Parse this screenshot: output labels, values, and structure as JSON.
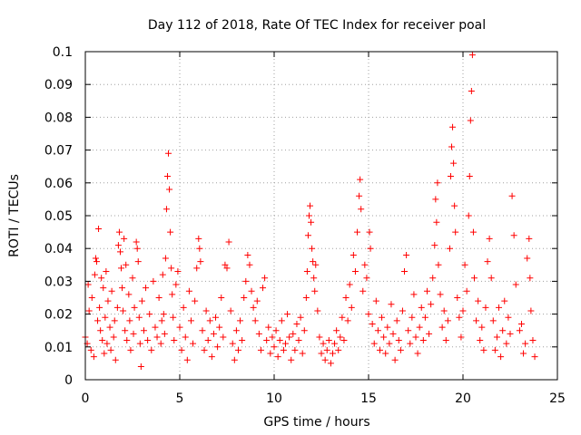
{
  "chart_data": {
    "type": "scatter",
    "title": "Day 112 of 2018, Rate Of TEC Index for receiver poal",
    "xlabel": "GPS time / hours",
    "ylabel": "ROTI / TECUs",
    "xlim": [
      0,
      25
    ],
    "ylim": [
      0,
      0.1
    ],
    "xticks": [
      0,
      5,
      10,
      15,
      20,
      25
    ],
    "xtick_labels": [
      "0",
      "5",
      "10",
      "15",
      "20",
      "25"
    ],
    "yticks": [
      0,
      0.01,
      0.02,
      0.03,
      0.04,
      0.05,
      0.06,
      0.07,
      0.08,
      0.09,
      0.1
    ],
    "ytick_labels": [
      "0",
      "0.01",
      "0.02",
      "0.03",
      "0.04",
      "0.05",
      "0.06",
      "0.07",
      "0.08",
      "0.09",
      "0.1"
    ],
    "grid": true,
    "marker": "+",
    "color": "#ff0000",
    "series": [
      {
        "name": "ROTI",
        "points": [
          [
            0.0,
            0.013
          ],
          [
            0.1,
            0.011
          ],
          [
            0.15,
            0.029
          ],
          [
            0.2,
            0.021
          ],
          [
            0.3,
            0.009
          ],
          [
            0.35,
            0.025
          ],
          [
            0.45,
            0.007
          ],
          [
            0.5,
            0.032
          ],
          [
            0.55,
            0.037
          ],
          [
            0.6,
            0.036
          ],
          [
            0.65,
            0.018
          ],
          [
            0.7,
            0.046
          ],
          [
            0.75,
            0.022
          ],
          [
            0.8,
            0.015
          ],
          [
            0.85,
            0.031
          ],
          [
            0.9,
            0.012
          ],
          [
            0.95,
            0.028
          ],
          [
            1.0,
            0.008
          ],
          [
            1.05,
            0.019
          ],
          [
            1.1,
            0.033
          ],
          [
            1.15,
            0.011
          ],
          [
            1.2,
            0.024
          ],
          [
            1.3,
            0.016
          ],
          [
            1.35,
            0.009
          ],
          [
            1.4,
            0.027
          ],
          [
            1.5,
            0.013
          ],
          [
            1.55,
            0.018
          ],
          [
            1.6,
            0.006
          ],
          [
            1.7,
            0.022
          ],
          [
            1.75,
            0.041
          ],
          [
            1.8,
            0.045
          ],
          [
            1.85,
            0.039
          ],
          [
            1.9,
            0.034
          ],
          [
            1.95,
            0.028
          ],
          [
            2.0,
            0.021
          ],
          [
            2.05,
            0.043
          ],
          [
            2.1,
            0.015
          ],
          [
            2.15,
            0.035
          ],
          [
            2.2,
            0.012
          ],
          [
            2.3,
            0.026
          ],
          [
            2.35,
            0.018
          ],
          [
            2.4,
            0.009
          ],
          [
            2.5,
            0.031
          ],
          [
            2.55,
            0.014
          ],
          [
            2.6,
            0.022
          ],
          [
            2.7,
            0.042
          ],
          [
            2.75,
            0.04
          ],
          [
            2.8,
            0.036
          ],
          [
            2.85,
            0.019
          ],
          [
            2.9,
            0.011
          ],
          [
            2.95,
            0.004
          ],
          [
            3.0,
            0.024
          ],
          [
            3.1,
            0.015
          ],
          [
            3.2,
            0.028
          ],
          [
            3.3,
            0.012
          ],
          [
            3.4,
            0.02
          ],
          [
            3.5,
            0.009
          ],
          [
            3.6,
            0.03
          ],
          [
            3.7,
            0.016
          ],
          [
            3.8,
            0.013
          ],
          [
            3.9,
            0.025
          ],
          [
            4.0,
            0.011
          ],
          [
            4.05,
            0.018
          ],
          [
            4.1,
            0.032
          ],
          [
            4.15,
            0.02
          ],
          [
            4.2,
            0.014
          ],
          [
            4.25,
            0.037
          ],
          [
            4.3,
            0.052
          ],
          [
            4.35,
            0.062
          ],
          [
            4.4,
            0.069
          ],
          [
            4.45,
            0.058
          ],
          [
            4.5,
            0.045
          ],
          [
            4.55,
            0.034
          ],
          [
            4.6,
            0.026
          ],
          [
            4.65,
            0.019
          ],
          [
            4.7,
            0.012
          ],
          [
            4.8,
            0.029
          ],
          [
            4.9,
            0.033
          ],
          [
            5.0,
            0.016
          ],
          [
            5.1,
            0.009
          ],
          [
            5.2,
            0.022
          ],
          [
            5.3,
            0.013
          ],
          [
            5.4,
            0.006
          ],
          [
            5.5,
            0.027
          ],
          [
            5.6,
            0.018
          ],
          [
            5.7,
            0.011
          ],
          [
            5.8,
            0.024
          ],
          [
            5.9,
            0.034
          ],
          [
            6.0,
            0.043
          ],
          [
            6.05,
            0.04
          ],
          [
            6.1,
            0.036
          ],
          [
            6.2,
            0.015
          ],
          [
            6.3,
            0.009
          ],
          [
            6.4,
            0.021
          ],
          [
            6.5,
            0.012
          ],
          [
            6.6,
            0.018
          ],
          [
            6.7,
            0.007
          ],
          [
            6.8,
            0.014
          ],
          [
            6.9,
            0.019
          ],
          [
            7.0,
            0.01
          ],
          [
            7.1,
            0.016
          ],
          [
            7.2,
            0.025
          ],
          [
            7.3,
            0.013
          ],
          [
            7.4,
            0.035
          ],
          [
            7.5,
            0.034
          ],
          [
            7.6,
            0.042
          ],
          [
            7.7,
            0.021
          ],
          [
            7.8,
            0.011
          ],
          [
            7.9,
            0.006
          ],
          [
            8.0,
            0.015
          ],
          [
            8.1,
            0.009
          ],
          [
            8.2,
            0.018
          ],
          [
            8.3,
            0.012
          ],
          [
            8.4,
            0.025
          ],
          [
            8.5,
            0.03
          ],
          [
            8.6,
            0.038
          ],
          [
            8.7,
            0.035
          ],
          [
            8.8,
            0.027
          ],
          [
            8.9,
            0.022
          ],
          [
            9.0,
            0.018
          ],
          [
            9.1,
            0.024
          ],
          [
            9.2,
            0.014
          ],
          [
            9.3,
            0.009
          ],
          [
            9.4,
            0.028
          ],
          [
            9.5,
            0.031
          ],
          [
            9.6,
            0.012
          ],
          [
            9.7,
            0.016
          ],
          [
            9.8,
            0.008
          ],
          [
            9.9,
            0.013
          ],
          [
            10.0,
            0.01
          ],
          [
            10.1,
            0.015
          ],
          [
            10.2,
            0.007
          ],
          [
            10.3,
            0.012
          ],
          [
            10.4,
            0.018
          ],
          [
            10.5,
            0.009
          ],
          [
            10.6,
            0.011
          ],
          [
            10.7,
            0.02
          ],
          [
            10.8,
            0.013
          ],
          [
            10.9,
            0.006
          ],
          [
            11.0,
            0.014
          ],
          [
            11.1,
            0.009
          ],
          [
            11.2,
            0.017
          ],
          [
            11.3,
            0.012
          ],
          [
            11.4,
            0.019
          ],
          [
            11.5,
            0.008
          ],
          [
            11.6,
            0.015
          ],
          [
            11.7,
            0.025
          ],
          [
            11.75,
            0.033
          ],
          [
            11.8,
            0.044
          ],
          [
            11.85,
            0.05
          ],
          [
            11.9,
            0.053
          ],
          [
            11.95,
            0.048
          ],
          [
            12.0,
            0.04
          ],
          [
            12.05,
            0.036
          ],
          [
            12.1,
            0.031
          ],
          [
            12.15,
            0.027
          ],
          [
            12.2,
            0.035
          ],
          [
            12.3,
            0.021
          ],
          [
            12.4,
            0.013
          ],
          [
            12.5,
            0.008
          ],
          [
            12.6,
            0.011
          ],
          [
            12.7,
            0.006
          ],
          [
            12.8,
            0.009
          ],
          [
            12.9,
            0.012
          ],
          [
            13.0,
            0.005
          ],
          [
            13.1,
            0.008
          ],
          [
            13.2,
            0.011
          ],
          [
            13.3,
            0.015
          ],
          [
            13.4,
            0.009
          ],
          [
            13.5,
            0.013
          ],
          [
            13.6,
            0.019
          ],
          [
            13.7,
            0.012
          ],
          [
            13.8,
            0.025
          ],
          [
            13.9,
            0.018
          ],
          [
            14.0,
            0.029
          ],
          [
            14.1,
            0.022
          ],
          [
            14.2,
            0.038
          ],
          [
            14.3,
            0.033
          ],
          [
            14.4,
            0.045
          ],
          [
            14.5,
            0.056
          ],
          [
            14.55,
            0.061
          ],
          [
            14.6,
            0.052
          ],
          [
            14.7,
            0.027
          ],
          [
            14.8,
            0.035
          ],
          [
            14.9,
            0.031
          ],
          [
            15.0,
            0.02
          ],
          [
            15.05,
            0.045
          ],
          [
            15.1,
            0.04
          ],
          [
            15.2,
            0.017
          ],
          [
            15.3,
            0.011
          ],
          [
            15.4,
            0.024
          ],
          [
            15.5,
            0.015
          ],
          [
            15.6,
            0.009
          ],
          [
            15.7,
            0.019
          ],
          [
            15.8,
            0.013
          ],
          [
            15.9,
            0.008
          ],
          [
            16.0,
            0.016
          ],
          [
            16.1,
            0.011
          ],
          [
            16.2,
            0.023
          ],
          [
            16.3,
            0.014
          ],
          [
            16.4,
            0.006
          ],
          [
            16.5,
            0.018
          ],
          [
            16.6,
            0.012
          ],
          [
            16.7,
            0.009
          ],
          [
            16.8,
            0.021
          ],
          [
            16.9,
            0.033
          ],
          [
            17.0,
            0.038
          ],
          [
            17.1,
            0.015
          ],
          [
            17.2,
            0.011
          ],
          [
            17.3,
            0.019
          ],
          [
            17.4,
            0.026
          ],
          [
            17.5,
            0.013
          ],
          [
            17.6,
            0.008
          ],
          [
            17.7,
            0.016
          ],
          [
            17.8,
            0.022
          ],
          [
            17.9,
            0.012
          ],
          [
            18.0,
            0.019
          ],
          [
            18.1,
            0.027
          ],
          [
            18.2,
            0.014
          ],
          [
            18.3,
            0.023
          ],
          [
            18.4,
            0.031
          ],
          [
            18.5,
            0.041
          ],
          [
            18.55,
            0.055
          ],
          [
            18.6,
            0.048
          ],
          [
            18.65,
            0.06
          ],
          [
            18.7,
            0.035
          ],
          [
            18.8,
            0.026
          ],
          [
            18.9,
            0.016
          ],
          [
            19.0,
            0.021
          ],
          [
            19.1,
            0.012
          ],
          [
            19.2,
            0.018
          ],
          [
            19.3,
            0.04
          ],
          [
            19.35,
            0.062
          ],
          [
            19.4,
            0.071
          ],
          [
            19.45,
            0.077
          ],
          [
            19.5,
            0.066
          ],
          [
            19.55,
            0.053
          ],
          [
            19.6,
            0.045
          ],
          [
            19.7,
            0.025
          ],
          [
            19.8,
            0.019
          ],
          [
            19.9,
            0.013
          ],
          [
            20.0,
            0.021
          ],
          [
            20.1,
            0.035
          ],
          [
            20.2,
            0.027
          ],
          [
            20.3,
            0.05
          ],
          [
            20.35,
            0.062
          ],
          [
            20.4,
            0.079
          ],
          [
            20.45,
            0.088
          ],
          [
            20.5,
            0.099
          ],
          [
            20.55,
            0.045
          ],
          [
            20.6,
            0.031
          ],
          [
            20.7,
            0.018
          ],
          [
            20.8,
            0.024
          ],
          [
            20.9,
            0.012
          ],
          [
            21.0,
            0.016
          ],
          [
            21.1,
            0.009
          ],
          [
            21.2,
            0.022
          ],
          [
            21.3,
            0.036
          ],
          [
            21.4,
            0.043
          ],
          [
            21.5,
            0.031
          ],
          [
            21.6,
            0.018
          ],
          [
            21.7,
            0.009
          ],
          [
            21.8,
            0.013
          ],
          [
            21.9,
            0.022
          ],
          [
            22.0,
            0.007
          ],
          [
            22.1,
            0.015
          ],
          [
            22.2,
            0.024
          ],
          [
            22.3,
            0.011
          ],
          [
            22.4,
            0.019
          ],
          [
            22.5,
            0.014
          ],
          [
            22.6,
            0.056
          ],
          [
            22.7,
            0.044
          ],
          [
            22.8,
            0.029
          ],
          [
            23.0,
            0.015
          ],
          [
            23.1,
            0.017
          ],
          [
            23.2,
            0.008
          ],
          [
            23.3,
            0.011
          ],
          [
            23.4,
            0.037
          ],
          [
            23.5,
            0.043
          ],
          [
            23.55,
            0.031
          ],
          [
            23.6,
            0.021
          ],
          [
            23.7,
            0.012
          ],
          [
            23.8,
            0.007
          ]
        ]
      }
    ]
  }
}
